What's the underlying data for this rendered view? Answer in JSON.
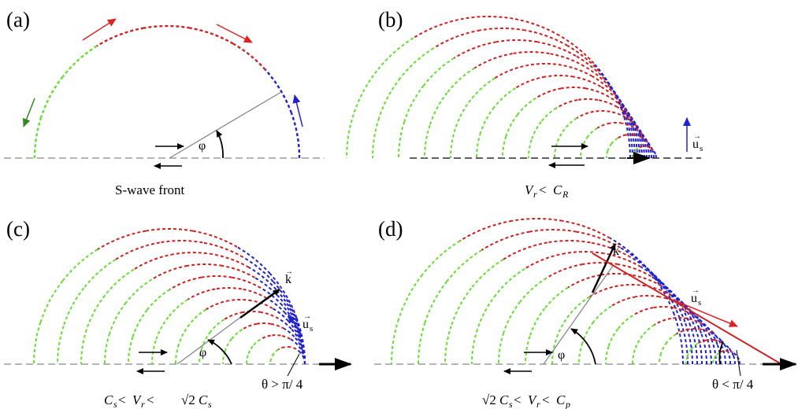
{
  "panels": {
    "a": {
      "label": "(a)",
      "caption": "S-wave front",
      "phi": "φ"
    },
    "b": {
      "label": "(b)",
      "caption_v": "V",
      "caption_vsub": "r",
      "caption_op": " < ",
      "caption_c": "C",
      "caption_csub": "R",
      "us": "u",
      "us_sub": "s",
      "vec": "→"
    },
    "c": {
      "label": "(c)",
      "caption_c1": "C",
      "caption_c1sub": "s",
      "caption_op1": " < ",
      "caption_v": "V",
      "caption_vsub": "r",
      "caption_op2": " <  ",
      "caption_sqrt": "√2",
      "caption_c2": "C",
      "caption_c2sub": "s",
      "k": "k",
      "us": "u",
      "us_sub": "s",
      "vec": "→",
      "phi": "φ",
      "theta": "θ > π/ 4"
    },
    "d": {
      "label": "(d)",
      "caption_sqrt": "√2",
      "caption_c1": "C",
      "caption_c1sub": "s",
      "caption_op1": " < ",
      "caption_v": "V",
      "caption_vsub": "r",
      "caption_op2": " < ",
      "caption_c2": "C",
      "caption_c2sub": "p",
      "k": "k",
      "us": "u",
      "us_sub": "s",
      "vec": "→",
      "phi": "φ",
      "theta": "θ < π/ 4"
    }
  },
  "colors": {
    "green": "#66dd33",
    "red": "#cc2222",
    "blue": "#2222cc",
    "gray": "#888888",
    "black": "#000000",
    "dark_green": "#338822",
    "arrow_red": "#dd2222"
  }
}
